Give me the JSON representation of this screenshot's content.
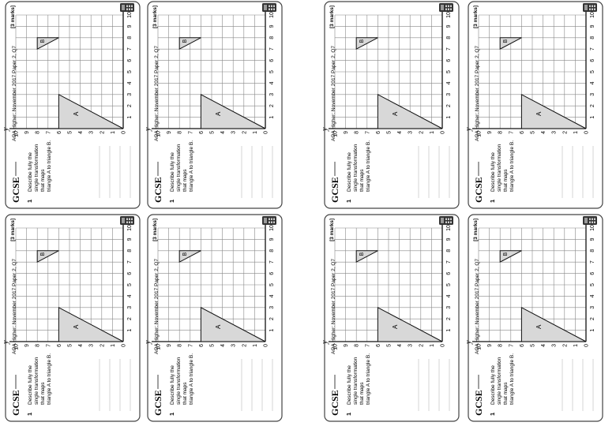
{
  "card": {
    "brand": "GCSE",
    "source": "AQA Higher: November 2017 Paper 2, Q7",
    "question_number": "1",
    "question_text": [
      "Describe fully the",
      "single transformation",
      "that maps",
      "triangle A to triangle B."
    ],
    "marks": "[3 marks]",
    "icon": "calculator-icon"
  },
  "grid": {
    "x_label": "x",
    "y_label": "y",
    "x_ticks": [
      "0",
      "1",
      "2",
      "3",
      "4",
      "5",
      "6",
      "7",
      "8",
      "9",
      "10"
    ],
    "y_ticks": [
      "0",
      "1",
      "2",
      "3",
      "4",
      "5",
      "6",
      "7",
      "8",
      "9",
      "10"
    ],
    "triangle_A": {
      "label": "A",
      "vertices": [
        [
          0,
          6
        ],
        [
          3,
          6
        ],
        [
          0,
          0
        ]
      ]
    },
    "triangle_B": {
      "label": "B",
      "vertices": [
        [
          7,
          8
        ],
        [
          8,
          8
        ],
        [
          8,
          6
        ]
      ]
    }
  },
  "colors": {
    "border": "#444444",
    "shade": "#d8d8d8",
    "grid": "#888888",
    "axis": "#111111"
  }
}
